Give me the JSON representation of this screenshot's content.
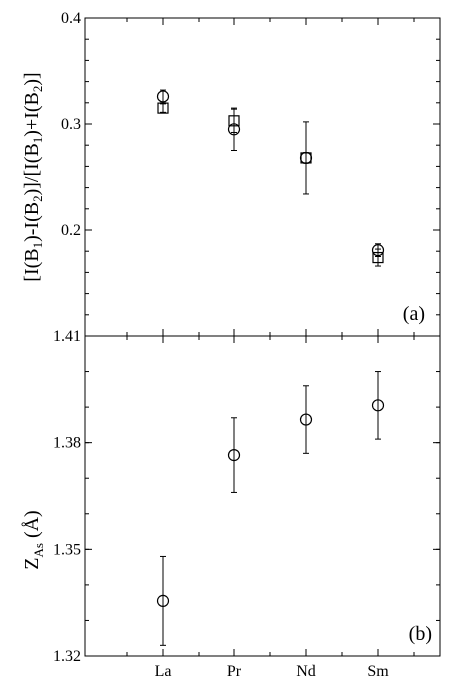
{
  "chart_data": [
    {
      "type": "scatter",
      "panel_label": "(a)",
      "ylabel": "[I(B1)-I(B2)]/[I(B1)+I(B2)]",
      "categories": [
        "La",
        "Pr",
        "Nd",
        "Sm"
      ],
      "ylim": [
        0.1,
        0.4
      ],
      "yticks": [
        "0.4",
        "0.3",
        "0.2"
      ],
      "grid": false,
      "series": [
        {
          "marker": "circle",
          "values": [
            0.326,
            0.295,
            0.268,
            0.181
          ],
          "errors": [
            0.006,
            0.02,
            0.034,
            0.006
          ]
        },
        {
          "marker": "square",
          "values": [
            0.315,
            0.303,
            0.268,
            0.174
          ],
          "errors": [
            0.004,
            0.011,
            0.005,
            0.008
          ]
        }
      ]
    },
    {
      "type": "scatter",
      "panel_label": "(b)",
      "ylabel": "ZAs (Å)",
      "categories": [
        "La",
        "Pr",
        "Nd",
        "Sm"
      ],
      "ylim": [
        1.32,
        1.41
      ],
      "yticks": [
        "1.41",
        "1.38",
        "1.35",
        "1.32"
      ],
      "grid": false,
      "series": [
        {
          "marker": "circle",
          "values": [
            1.3355,
            1.3765,
            1.3865,
            1.3905
          ],
          "errors": [
            0.0125,
            0.0105,
            0.0095,
            0.0095
          ]
        }
      ]
    }
  ]
}
